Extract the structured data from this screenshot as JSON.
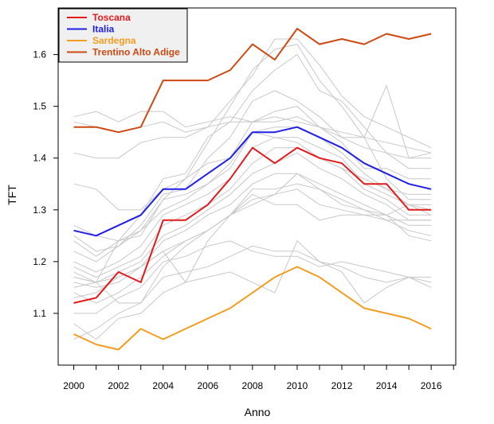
{
  "chart_data": {
    "type": "line",
    "title": "",
    "xlabel": "Anno",
    "ylabel": "TFT",
    "xlim": [
      1999.3,
      2017.1
    ],
    "ylim": [
      1.0,
      1.69
    ],
    "x_ticks": [
      "2000",
      "2002",
      "2004",
      "2006",
      "2008",
      "2010",
      "2012",
      "2014",
      "2016"
    ],
    "y_ticks": [
      "1.1",
      "1.2",
      "1.3",
      "1.4",
      "1.5",
      "1.6"
    ],
    "x": [
      2000,
      2001,
      2002,
      2003,
      2004,
      2005,
      2006,
      2007,
      2008,
      2009,
      2010,
      2011,
      2012,
      2013,
      2014,
      2015,
      2016
    ],
    "grid": false,
    "legend": {
      "position": "top-left"
    },
    "series": [
      {
        "name": "Toscana",
        "color": "#e31a1c",
        "values": [
          1.12,
          1.13,
          1.18,
          1.16,
          1.28,
          1.28,
          1.31,
          1.36,
          1.42,
          1.39,
          1.42,
          1.4,
          1.39,
          1.35,
          1.35,
          1.3,
          1.3
        ]
      },
      {
        "name": "Italia",
        "color": "#1f1fe6",
        "values": [
          1.26,
          1.25,
          1.27,
          1.29,
          1.34,
          1.34,
          1.37,
          1.4,
          1.45,
          1.45,
          1.46,
          1.44,
          1.42,
          1.39,
          1.37,
          1.35,
          1.34
        ]
      },
      {
        "name": "Sardegna",
        "color": "#f39c1f",
        "values": [
          1.06,
          1.04,
          1.03,
          1.07,
          1.05,
          1.07,
          1.09,
          1.11,
          1.14,
          1.17,
          1.19,
          1.17,
          1.14,
          1.11,
          1.1,
          1.09,
          1.07
        ]
      },
      {
        "name": "Trentino Alto Adige",
        "color": "#cc4a12",
        "values": [
          1.46,
          1.46,
          1.45,
          1.46,
          1.55,
          1.55,
          1.55,
          1.57,
          1.62,
          1.59,
          1.65,
          1.62,
          1.63,
          1.62,
          1.64,
          1.63,
          1.64
        ]
      }
    ],
    "background_series_color": "#c8c8c8",
    "background_series": [
      [
        1.48,
        1.49,
        1.47,
        1.49,
        1.49,
        1.46,
        1.47,
        1.48,
        1.47,
        1.47,
        1.48,
        1.46,
        1.45,
        1.44,
        1.43,
        1.42,
        1.41
      ],
      [
        1.47,
        1.46,
        1.45,
        1.46,
        1.47,
        1.45,
        1.46,
        1.47,
        1.47,
        1.48,
        1.47,
        1.46,
        1.44,
        1.42,
        1.41,
        1.4,
        1.4
      ],
      [
        1.41,
        1.4,
        1.4,
        1.43,
        1.44,
        1.44,
        1.46,
        1.51,
        1.56,
        1.63,
        1.63,
        1.58,
        1.52,
        1.48,
        1.46,
        1.44,
        1.42
      ],
      [
        1.35,
        1.34,
        1.3,
        1.3,
        1.34,
        1.36,
        1.43,
        1.5,
        1.57,
        1.61,
        1.62,
        1.55,
        1.5,
        1.44,
        1.54,
        1.4,
        1.41
      ],
      [
        1.27,
        1.25,
        1.24,
        1.29,
        1.36,
        1.37,
        1.44,
        1.47,
        1.53,
        1.57,
        1.6,
        1.53,
        1.51,
        1.46,
        1.41,
        1.38,
        1.38
      ],
      [
        1.25,
        1.22,
        1.23,
        1.27,
        1.33,
        1.34,
        1.4,
        1.44,
        1.51,
        1.53,
        1.51,
        1.48,
        1.44,
        1.44,
        1.36,
        1.32,
        1.32
      ],
      [
        1.24,
        1.21,
        1.24,
        1.26,
        1.32,
        1.36,
        1.39,
        1.4,
        1.47,
        1.49,
        1.5,
        1.46,
        1.43,
        1.38,
        1.38,
        1.36,
        1.36
      ],
      [
        1.22,
        1.2,
        1.23,
        1.26,
        1.3,
        1.32,
        1.35,
        1.38,
        1.45,
        1.46,
        1.46,
        1.44,
        1.41,
        1.37,
        1.34,
        1.33,
        1.33
      ],
      [
        1.2,
        1.18,
        1.2,
        1.23,
        1.29,
        1.31,
        1.33,
        1.36,
        1.42,
        1.44,
        1.44,
        1.42,
        1.4,
        1.35,
        1.33,
        1.31,
        1.31
      ],
      [
        1.19,
        1.17,
        1.19,
        1.21,
        1.27,
        1.29,
        1.31,
        1.34,
        1.39,
        1.42,
        1.42,
        1.4,
        1.38,
        1.34,
        1.32,
        1.29,
        1.29
      ],
      [
        1.18,
        1.16,
        1.18,
        1.2,
        1.25,
        1.27,
        1.3,
        1.33,
        1.37,
        1.39,
        1.41,
        1.38,
        1.36,
        1.33,
        1.31,
        1.28,
        1.28
      ],
      [
        1.17,
        1.16,
        1.17,
        1.19,
        1.24,
        1.26,
        1.29,
        1.31,
        1.35,
        1.37,
        1.37,
        1.35,
        1.33,
        1.31,
        1.29,
        1.27,
        1.27
      ],
      [
        1.16,
        1.15,
        1.16,
        1.19,
        1.22,
        1.16,
        1.24,
        1.29,
        1.34,
        1.34,
        1.35,
        1.34,
        1.31,
        1.3,
        1.28,
        1.26,
        1.25
      ],
      [
        1.15,
        1.16,
        1.24,
        1.25,
        1.32,
        1.33,
        1.35,
        1.39,
        1.45,
        1.44,
        1.43,
        1.4,
        1.38,
        1.36,
        1.34,
        1.31,
        1.3
      ],
      [
        1.13,
        1.14,
        1.17,
        1.19,
        1.22,
        1.24,
        1.26,
        1.29,
        1.32,
        1.33,
        1.34,
        1.31,
        1.3,
        1.29,
        1.28,
        1.28,
        1.28
      ],
      [
        1.14,
        1.12,
        1.14,
        1.17,
        1.21,
        1.24,
        1.26,
        1.29,
        1.33,
        1.31,
        1.31,
        1.28,
        1.29,
        1.29,
        1.29,
        1.31,
        1.29
      ],
      [
        1.17,
        1.16,
        1.12,
        1.12,
        1.19,
        1.23,
        1.26,
        1.29,
        1.31,
        1.33,
        1.37,
        1.34,
        1.32,
        1.3,
        1.29,
        1.25,
        1.24
      ],
      [
        1.1,
        1.1,
        1.13,
        1.15,
        1.2,
        1.21,
        1.23,
        1.24,
        1.22,
        1.21,
        1.21,
        1.19,
        1.2,
        1.19,
        1.18,
        1.17,
        1.17
      ],
      [
        1.08,
        1.05,
        1.09,
        1.1,
        1.14,
        1.16,
        1.17,
        1.18,
        1.16,
        1.14,
        1.24,
        1.2,
        1.18,
        1.12,
        1.15,
        1.17,
        1.15
      ],
      [
        1.05,
        1.07,
        1.1,
        1.12,
        1.17,
        1.18,
        1.19,
        1.21,
        1.23,
        1.22,
        1.22,
        1.2,
        1.19,
        1.17,
        1.16,
        1.17,
        1.16
      ]
    ]
  }
}
